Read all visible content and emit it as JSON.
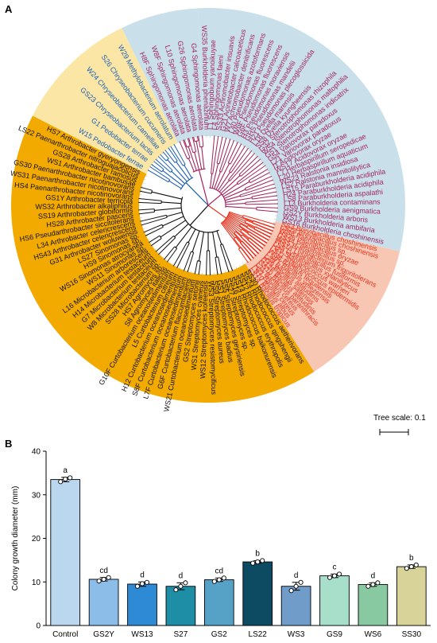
{
  "panel_a": {
    "label": "A",
    "tree_scale_label": "Tree scale: 0.1",
    "clade_colors": {
      "purple": "#a3245e",
      "red": "#e8321e",
      "black": "#111111",
      "blue": "#1a5fb4"
    },
    "sector_colors": {
      "purple": "#c9e0ea",
      "red": "#f8c7b3",
      "black": "#f2a900",
      "blue": "#fbe6a6"
    },
    "leaf_groups": [
      {
        "clade": "purple",
        "start_deg": -93,
        "end_deg": 13.5,
        "leaves": [
          "WS35 Burkholderia phenazinium",
          "L1 Sphingobium yanoikuyae",
          "L4 Sphingomonas faeni",
          "SS33 Achromobacter insuavis",
          "G21 Acinetobacter calcoaceticus",
          "W7 Achromobacter denitrificans",
          "L40 Pseudomonas azotoformans",
          "W6F Pseudomonas fluorescens",
          "G6F Pseudomonas fluorescens",
          "H3 Pseudomonas moraviensis",
          "GHS Pseudomonas mandelii",
          "H21 Pseudomonas plecoglossicida",
          "L18 Dyella marensis",
          "SS8 Dyella kyungheensis",
          "G32 Stenotrophomonas rhizophila",
          "WS4 Stenotrophomonas maltophilia",
          "G51 Stenotrophomonas indicatrix",
          "G54 Variovorax paradoxus",
          "L21 Variovorax paradoxus",
          "I1 Acidovorax oryzae",
          "WS17 Acidovorax oryzae",
          "L7 Herbaspirillum seropedicae",
          "L20 Herbaspirillum aquaticum",
          "WS23 Ralstonia insidiosa",
          "LS2 Ralstonia mannitolilytica",
          "LS15 Paraburkholderia acidiphila",
          "H24 Paraburkholderia acidiphila",
          "LS8 Paraburkholderia aspalathi",
          "L13 Burkholderia contaminans",
          "GS9 Burkholderia aenigmatica",
          "GS2Y Burkholderia arboris",
          "WS13 Burkholderia ambifaria",
          "GS16 Burkholderia choshinensis"
        ]
      },
      {
        "clade": "red",
        "start_deg": 13.5,
        "end_deg": 57.5,
        "leaves": [
          "SS3 Brevibacillus choshinensis",
          "LS28 Brevibacillus choshinensis",
          "WS8 Paenibacillus sp.",
          "HS26 Paenibacillus oryzae",
          "GS34 Paenibacillus sp.",
          "WS5 Brevibacterium frigoritolerans",
          "WS18 Lysinibacillus fusiformis",
          "LS5 Lysinibacillus xylanilyticus",
          "H29 Staphylococcus warneri",
          "LS11 Staphylococcus epidermidis",
          "WS6 Bacillus tequilensis",
          "LS9Y Bacillus velezensis",
          "L29 Bacillus altitudinis",
          "H39 Bacillus safensis",
          "G12F Bacillus altitudinis",
          "GS10 Bacillus paranthracis",
          "L11 Bacillus cereus",
          "H21 Bacillus cereus",
          "LS10 Bacillus albus",
          "LS14 Bacillus tropicus"
        ]
      },
      {
        "clade": "black",
        "start_deg": 57.5,
        "end_deg": 207,
        "leaves": [
          "SS30 Rhodococcus aetherivorans",
          "SS24 Rhodococcus qingshengii",
          "SS12 Rhodococcus erythropolis",
          "SS14 Rhodococcus baikonurensis",
          "SS16 Streptomyces sp.",
          "SS27 Streptomyces sp.",
          "SS5 Streptomyces geysiriensis",
          "GS1 Streptomyces badius",
          "SS9 Streptomyces aureus",
          "WS3 Streptomyces resistomycificus",
          "WS12 Streptomyces koreensis",
          "WS1 Streptomyces cyaneus",
          "GS2 Streptomyces setonii",
          "WS21 Curtobacterium oceanosedimentum",
          "G6F Curtobacterium flaccumfaciens",
          "L7F Curtobacterium oceanosedimentum",
          "S8F Curtobacterium oceanosedimentum",
          "H12 Curtobacterium oceanosedimentum",
          "L5 Curtobacterium citreum",
          "G10F Curtobacterium oceanosedimentum",
          "S8 Agromyces italicus",
          "HS7 Agromyces sp.",
          "SS28 Microbacterium sp.",
          "W8 Microbacterium testaceum",
          "G7 Microbacterium testaceum",
          "H14 Microbacterium testaceum",
          "L16 Microbacterium arborescens",
          "WS11 Sinomonas sp.",
          "WS16 Sinomonas atrocyanea",
          "HS9 Sinomonas sp.",
          "LS27 Sinomonas sp.",
          "G31 Arthrobacter woluwensis",
          "HS43 Arthrobacter celericrescens",
          "L34 Arthrobacter celericrescens",
          "HS6 Pseudarthrobacter siccitolerans",
          "HS28 Arthrobacter pascens",
          "SS19 Arthrobacter globiformis",
          "WS32 Arthrobacter alkaliphilus",
          "GS1Y Arthrobacter terricola",
          "HS4 Paenarthrobacter nicotinovorans",
          "WS31 Paenarthrobacter nicotinovorans",
          "GS30 Paenarthrobacter nicotinovorans",
          "WS1 Arthrobacter bambusae",
          "GS28 Arthrobacter ramosus",
          "LS22 Paenarthrobacter nitroguajacolicus",
          "HS7 Arthrobacter gyeryongensis"
        ]
      },
      {
        "clade": "blue",
        "start_deg": 207,
        "end_deg": 244,
        "leaves": [
          "W15 Pedobacter ferrae",
          "G1 Pedobacter terrae",
          "GS23 Chryseobacterium lactis",
          "W24 Chryseobacterium camelliae",
          "S26 Chryseobacterium cucumeris",
          "W29 Methylobacterium aerolatum"
        ]
      },
      {
        "clade": "purple",
        "start_deg": 244,
        "end_deg": 267,
        "leaves": [
          "H8F Sphingomonas aerolata",
          "W8F Sphingomonas aerolata",
          "L10 Sphingomonas aerolata",
          "G26 Sphingomonas aerolata",
          "G4 Sphingomonas aerolata"
        ]
      }
    ]
  },
  "panel_b": {
    "label": "B"
  },
  "chart_data": {
    "type": "bar",
    "title": "",
    "xlabel": "",
    "ylabel": "Colony growth diameter (mm)",
    "ylim": [
      0,
      40
    ],
    "yticks": [
      0,
      10,
      20,
      30,
      40
    ],
    "grid": false,
    "legend": "none",
    "categories": [
      "Control",
      "GS2Y",
      "WS13",
      "S27",
      "GS2",
      "LS22",
      "WS3",
      "GS9",
      "WS6",
      "SS30"
    ],
    "values": [
      33.5,
      10.6,
      9.5,
      9.0,
      10.5,
      14.6,
      9.0,
      11.4,
      9.4,
      13.5
    ],
    "significance_letters": [
      "a",
      "cd",
      "d",
      "d",
      "cd",
      "b",
      "d",
      "c",
      "d",
      "b"
    ],
    "bar_colors": [
      "#bad7ef",
      "#8cbde8",
      "#2f8ad6",
      "#1d8ea6",
      "#56a2c6",
      "#0d4b62",
      "#6f9cc9",
      "#a7dfcb",
      "#88c9a2",
      "#d8d499"
    ],
    "replicates": [
      [
        33.0,
        33.6,
        33.9
      ],
      [
        10.2,
        10.6,
        11.0
      ],
      [
        9.0,
        9.6,
        9.9
      ],
      [
        8.2,
        9.0,
        9.8
      ],
      [
        10.1,
        10.5,
        10.9
      ],
      [
        14.3,
        14.6,
        14.9
      ],
      [
        8.0,
        9.0,
        9.9
      ],
      [
        11.0,
        11.4,
        11.8
      ],
      [
        9.0,
        9.4,
        9.8
      ],
      [
        13.1,
        13.5,
        13.9
      ]
    ],
    "errors": [
      0.5,
      0.4,
      0.5,
      0.8,
      0.4,
      0.3,
      0.9,
      0.4,
      0.4,
      0.4
    ]
  }
}
